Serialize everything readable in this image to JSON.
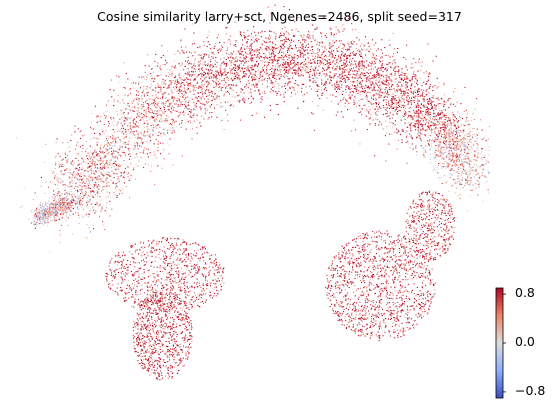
{
  "chart_data": {
    "type": "scatter",
    "title": "Cosine similarity larry+sct, Ngenes=2486, split seed=317",
    "xlabel": "",
    "ylabel": "",
    "axes_visible": false,
    "grid": false,
    "colormap": "coolwarm",
    "color_range": [
      -0.9,
      0.9
    ],
    "colorbar": {
      "position": "right-bottom",
      "ticks": [
        0.8,
        0.0,
        -0.8
      ],
      "tick_labels": [
        "0.8",
        "0.0",
        "−0.8"
      ]
    },
    "description_of_points": "dense embedding of many small cells; values predominantly positive (red), lighter near the left tip and the upper-right end",
    "regions": [
      {
        "name": "left-lower-lobe",
        "mean_value": 0.82
      },
      {
        "name": "left-upper-lobe",
        "mean_value": 0.78
      },
      {
        "name": "left-tip",
        "mean_value": 0.15
      },
      {
        "name": "arc-left",
        "mean_value": 0.5
      },
      {
        "name": "arc-top",
        "mean_value": 0.75
      },
      {
        "name": "arc-right-end",
        "mean_value": 0.3
      },
      {
        "name": "right-lobe",
        "mean_value": 0.78
      }
    ]
  }
}
